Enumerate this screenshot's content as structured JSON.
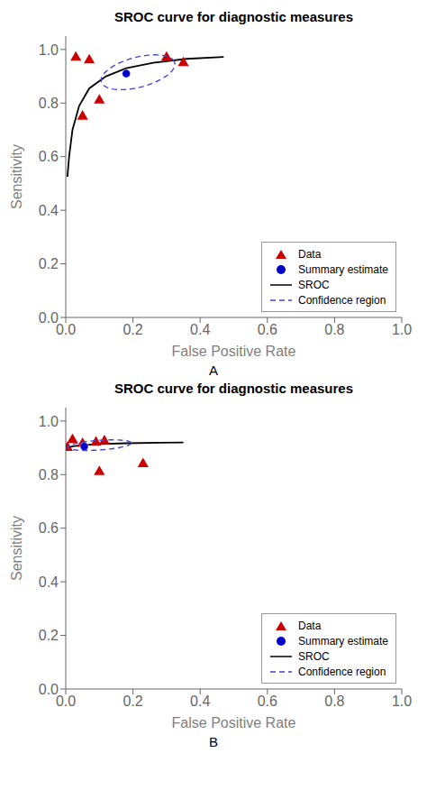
{
  "chart_data": [
    {
      "type": "scatter",
      "title": "SROC curve for diagnostic measures",
      "xlabel": "False Positive Rate",
      "ylabel": "Sensitivity",
      "annotations": [
        "A"
      ],
      "series": [
        {
          "name": "Data",
          "type": "scatter",
          "marker": "triangle",
          "color": "#cc0000",
          "x": [
            0.03,
            0.07,
            0.05,
            0.1,
            0.3,
            0.35
          ],
          "values": [
            0.97,
            0.96,
            0.75,
            0.81,
            0.97,
            0.95
          ]
        },
        {
          "name": "Summary estimate",
          "type": "scatter",
          "marker": "circle",
          "color": "#0000cc",
          "x": [
            0.18
          ],
          "values": [
            0.91
          ]
        },
        {
          "name": "SROC",
          "type": "line",
          "line_style": "solid",
          "color": "#000000",
          "x": [
            0.005,
            0.01,
            0.02,
            0.04,
            0.07,
            0.12,
            0.18,
            0.26,
            0.36,
            0.47
          ],
          "values": [
            0.525,
            0.6,
            0.7,
            0.79,
            0.855,
            0.9,
            0.93,
            0.95,
            0.965,
            0.972
          ]
        },
        {
          "name": "Confidence region",
          "type": "ellipse",
          "line_style": "dashed",
          "color": "#4444cc",
          "ellipse": {
            "cx": 0.215,
            "cy": 0.915,
            "rx": 0.115,
            "ry": 0.055,
            "angle": 20
          }
        }
      ],
      "xlim": [
        0.0,
        1.0
      ],
      "ylim": [
        0.0,
        1.05
      ],
      "xticks": [
        {
          "value": 0.0,
          "label": "0.0"
        },
        0.2,
        0.4,
        0.6,
        0.8,
        {
          "value": 1.0,
          "label": "1.0"
        }
      ],
      "yticks": [
        {
          "value": 0.0,
          "label": "0.0"
        },
        0.2,
        0.4,
        0.6,
        0.8,
        {
          "value": 1.0,
          "label": "1.0"
        }
      ],
      "grid": false,
      "legend": "lower right"
    },
    {
      "type": "scatter",
      "title": "SROC curve for diagnostic measures",
      "xlabel": "False Positive Rate",
      "ylabel": "Sensitivity",
      "annotations": [
        "B"
      ],
      "series": [
        {
          "name": "Data",
          "type": "scatter",
          "marker": "triangle",
          "color": "#cc0000",
          "x": [
            0.005,
            0.02,
            0.05,
            0.09,
            0.115,
            0.1,
            0.23
          ],
          "values": [
            0.9,
            0.93,
            0.915,
            0.92,
            0.925,
            0.81,
            0.84
          ]
        },
        {
          "name": "Summary estimate",
          "type": "scatter",
          "marker": "circle",
          "color": "#0000cc",
          "x": [
            0.055
          ],
          "values": [
            0.905
          ]
        },
        {
          "name": "SROC",
          "type": "line",
          "line_style": "solid",
          "color": "#000000",
          "x": [
            0.005,
            0.02,
            0.05,
            0.1,
            0.18,
            0.28,
            0.35
          ],
          "values": [
            0.9,
            0.906,
            0.91,
            0.914,
            0.917,
            0.919,
            0.92
          ]
        },
        {
          "name": "Confidence region",
          "type": "ellipse",
          "line_style": "dashed",
          "color": "#4444cc",
          "ellipse": {
            "cx": 0.1,
            "cy": 0.91,
            "rx": 0.095,
            "ry": 0.018,
            "angle": 5
          }
        }
      ],
      "xlim": [
        0.0,
        1.0
      ],
      "ylim": [
        0.0,
        1.05
      ],
      "xticks": [
        {
          "value": 0.0,
          "label": "0.0"
        },
        0.2,
        0.4,
        0.6,
        0.8,
        {
          "value": 1.0,
          "label": "1.0"
        }
      ],
      "yticks": [
        {
          "value": 0.0,
          "label": "0.0"
        },
        0.2,
        0.4,
        0.6,
        0.8,
        {
          "value": 1.0,
          "label": "1.0"
        }
      ],
      "grid": false,
      "legend": "lower right"
    }
  ]
}
